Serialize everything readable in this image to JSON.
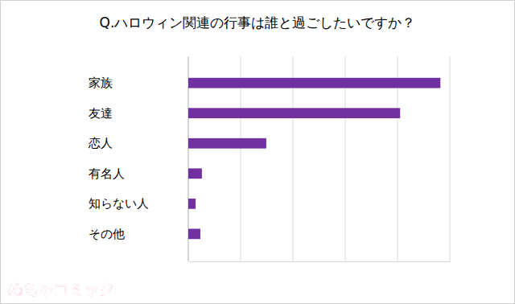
{
  "chart_data": {
    "type": "bar",
    "orientation": "horizontal",
    "title": "Q.ハロウィン関連の行事は誰と過ごしたいですか？",
    "categories": [
      "家族",
      "友達",
      "恋人",
      "有名人",
      "知らない人",
      "その他"
    ],
    "values": [
      48.2,
      40.5,
      14.9,
      2.6,
      1.4,
      2.3
    ],
    "color": "#7030a0",
    "xlim": [
      0,
      50
    ],
    "xticks": [
      0,
      10,
      20,
      30,
      40,
      50
    ],
    "grid": true,
    "tick_labels": false
  },
  "logo": {
    "text": "めちゃコミック",
    "color": "#e4007f"
  }
}
